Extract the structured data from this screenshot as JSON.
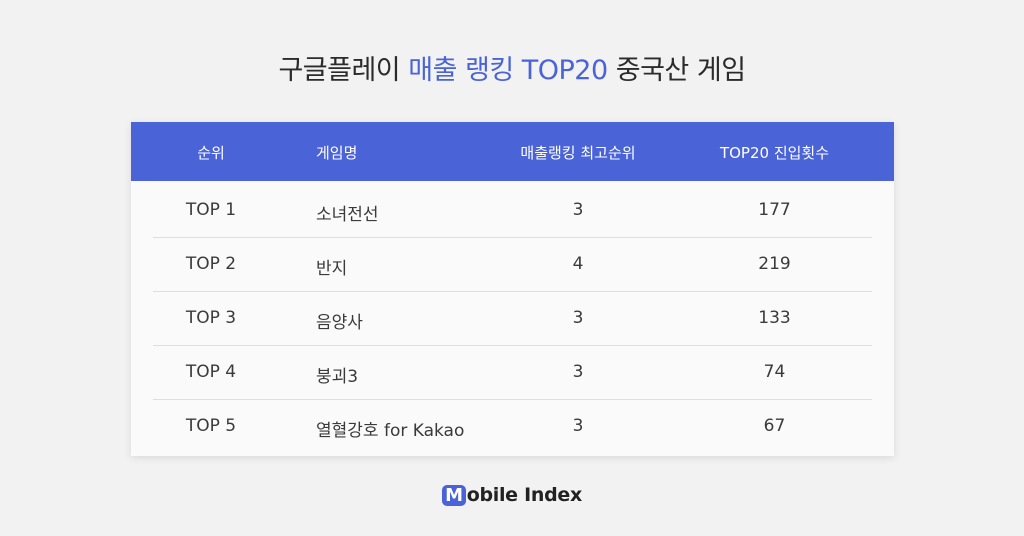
{
  "header": {
    "title_prefix": "구글플레이",
    "title_highlight": "매출 랭킹 TOP20",
    "title_suffix": "중국산 게임",
    "accent_color": "#4a63d6"
  },
  "chart_data": {
    "type": "table",
    "columns": [
      "순위",
      "게임명",
      "매출랭킹 최고순위",
      "TOP20 진입횟수"
    ],
    "rows": [
      [
        "TOP 1",
        "소녀전선",
        "3",
        "177"
      ],
      [
        "TOP 2",
        "반지",
        "4",
        "219"
      ],
      [
        "TOP 3",
        "음양사",
        "3",
        "133"
      ],
      [
        "TOP 4",
        "붕괴3",
        "3",
        "74"
      ],
      [
        "TOP 5",
        "열혈강호 for Kakao",
        "3",
        "67"
      ]
    ]
  },
  "brand": {
    "logo_letter": "M",
    "logo_rest": "obile Index"
  }
}
